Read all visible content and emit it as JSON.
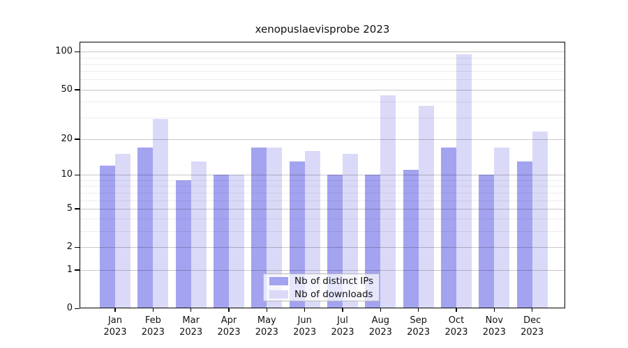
{
  "title": "xenopuslaevisprobe 2023",
  "chart_data": {
    "type": "bar",
    "title": "xenopuslaevisprobe 2023",
    "scale": "log1p",
    "year": "2023",
    "categories": [
      "Jan",
      "Feb",
      "Mar",
      "Apr",
      "May",
      "Jun",
      "Jul",
      "Aug",
      "Sep",
      "Oct",
      "Nov",
      "Dec"
    ],
    "series": [
      {
        "name": "Nb of distinct IPs",
        "color": "#a3a3f0",
        "values": [
          12,
          17,
          9,
          10,
          17,
          13,
          10,
          10,
          11,
          17,
          10,
          13
        ]
      },
      {
        "name": "Nb of downloads",
        "color": "#dadaf8",
        "values": [
          15,
          29,
          13,
          10,
          17,
          16,
          15,
          45,
          37,
          95,
          17,
          23
        ]
      }
    ],
    "yticks": [
      "0",
      "1",
      "2",
      "5",
      "10",
      "20",
      "50",
      "100"
    ],
    "ytick_values": [
      0,
      1,
      2,
      5,
      10,
      20,
      50,
      100
    ],
    "minor_ytick_values": [
      3,
      4,
      6,
      7,
      8,
      9,
      30,
      40,
      60,
      70,
      80,
      90
    ],
    "ylim": [
      0,
      120
    ],
    "grid": "on-top",
    "legend_position": "inside-bottom-center",
    "colors": {
      "bar_distinct_ips": "#a3a3f0",
      "bar_downloads": "#dadaf8",
      "grid_major": "rgba(0,0,0,0.22)",
      "grid_minor": "rgba(0,0,0,0.07)",
      "spine": "#000000",
      "background": "#ffffff"
    }
  }
}
